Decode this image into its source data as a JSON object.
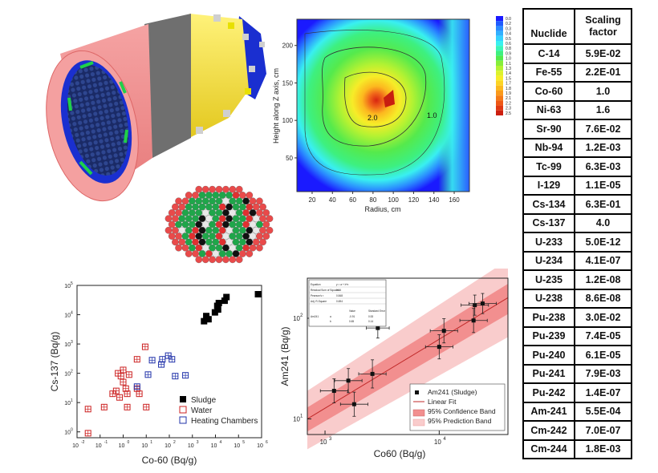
{
  "colors": {
    "cyl_pink": "#f08a8a",
    "cyl_grey": "#6f6f6f",
    "cyl_yellow": "#f2e02c",
    "cyl_blue": "#1a2fd0",
    "fuel_green": "#1fa64a",
    "fuel_red": "#e03030",
    "sludge": "#000000",
    "water": "#cc2222",
    "heating": "#2233aa",
    "confidence_band": "#f28f8f",
    "prediction_band": "#f9cccc"
  },
  "contour_plot": {
    "ylabel": "Height along Z axis, cm",
    "xlabel": "Radius, cm",
    "x_ticks": [
      "20",
      "40",
      "60",
      "80",
      "100",
      "120",
      "140",
      "160"
    ],
    "y_ticks": [
      "50",
      "100",
      "150",
      "200"
    ],
    "contour_labels": [
      "2.0",
      "1.0"
    ],
    "colorbar_ticks": [
      "0.0",
      "0.2",
      "0.3",
      "0.4",
      "0.5",
      "0.6",
      "0.8",
      "0.9",
      "1.0",
      "1.1",
      "1.3",
      "1.4",
      "1.5",
      "1.7",
      "1.8",
      "1.9",
      "2.1",
      "2.2",
      "2.3",
      "2.5"
    ],
    "colorbar_colors": [
      "#1a1aff",
      "#1f5bff",
      "#2a8bff",
      "#30b0ff",
      "#35d2ff",
      "#39f0f0",
      "#3af5b8",
      "#3df080",
      "#55ea4c",
      "#86ee3a",
      "#b4f232",
      "#dcf22c",
      "#f7ec28",
      "#fcd424",
      "#fcb81f",
      "#fa9a1b",
      "#f57a17",
      "#ee5714",
      "#e03812",
      "#cc1f10"
    ]
  },
  "scaling_table": {
    "header_nuclide": "Nuclide",
    "header_factor_line1": "Scaling",
    "header_factor_line2": "factor",
    "rows": [
      {
        "nuclide": "C-14",
        "factor": "5.9E-02"
      },
      {
        "nuclide": "Fe-55",
        "factor": "2.2E-01"
      },
      {
        "nuclide": "Co-60",
        "factor": "1.0"
      },
      {
        "nuclide": "Ni-63",
        "factor": "1.6"
      },
      {
        "nuclide": "Sr-90",
        "factor": "7.6E-02"
      },
      {
        "nuclide": "Nb-94",
        "factor": "1.2E-03"
      },
      {
        "nuclide": "Tc-99",
        "factor": "6.3E-03"
      },
      {
        "nuclide": "I-129",
        "factor": "1.1E-05"
      },
      {
        "nuclide": "Cs-134",
        "factor": "6.3E-01"
      },
      {
        "nuclide": "Cs-137",
        "factor": "4.0"
      },
      {
        "nuclide": "U-233",
        "factor": "5.0E-12"
      },
      {
        "nuclide": "U-234",
        "factor": "4.1E-07"
      },
      {
        "nuclide": "U-235",
        "factor": "1.2E-08"
      },
      {
        "nuclide": "U-238",
        "factor": "8.6E-08"
      },
      {
        "nuclide": "Pu-238",
        "factor": "3.0E-02"
      },
      {
        "nuclide": "Pu-239",
        "factor": "7.4E-05"
      },
      {
        "nuclide": "Pu-240",
        "factor": "6.1E-05"
      },
      {
        "nuclide": "Pu-241",
        "factor": "7.9E-03"
      },
      {
        "nuclide": "Pu-242",
        "factor": "1.4E-07"
      },
      {
        "nuclide": "Am-241",
        "factor": "5.5E-04"
      },
      {
        "nuclide": "Cm-242",
        "factor": "7.0E-07"
      },
      {
        "nuclide": "Cm-244",
        "factor": "1.8E-03"
      }
    ]
  },
  "chart_data": [
    {
      "type": "scatter",
      "title": "",
      "xlabel": "Co-60 (Bq/g)",
      "ylabel": "Cs-137 (Bq/g)",
      "xscale": "log",
      "yscale": "log",
      "xlim_exp": [
        -2,
        6
      ],
      "ylim_exp": [
        -0.2,
        5
      ],
      "x_tick_labels": [
        "10",
        "10",
        "10",
        "10",
        "10",
        "10",
        "10",
        "10",
        "10"
      ],
      "x_tick_exps": [
        "-2",
        "-1",
        "0",
        "1",
        "2",
        "3",
        "4",
        "5",
        "6"
      ],
      "y_tick_labels": [
        "10",
        "10",
        "10",
        "10",
        "10",
        "10"
      ],
      "y_tick_exps": [
        "0",
        "1",
        "2",
        "3",
        "4",
        "5"
      ],
      "legend_position": "bottom-right",
      "series": [
        {
          "name": "Sludge",
          "marker": "filled-square",
          "points": [
            [
              3200,
              6000
            ],
            [
              4000,
              9000
            ],
            [
              5000,
              7000
            ],
            [
              9500,
              12000
            ],
            [
              12000,
              20000
            ],
            [
              13000,
              15000
            ],
            [
              14000,
              25000
            ],
            [
              25000,
              30000
            ],
            [
              30000,
              40000
            ],
            [
              700000,
              50000
            ]
          ]
        },
        {
          "name": "Water",
          "marker": "open-square-cross",
          "points": [
            [
              0.03,
              0.9
            ],
            [
              0.03,
              6
            ],
            [
              0.15,
              7
            ],
            [
              0.35,
              20
            ],
            [
              0.5,
              25
            ],
            [
              0.6,
              100
            ],
            [
              0.7,
              15
            ],
            [
              0.8,
              80
            ],
            [
              1.0,
              50
            ],
            [
              1.0,
              130
            ],
            [
              1.3,
              30
            ],
            [
              1.5,
              20
            ],
            [
              1.5,
              7
            ],
            [
              1.8,
              90
            ],
            [
              4,
              300
            ],
            [
              4,
              30
            ],
            [
              5,
              20
            ],
            [
              9,
              800
            ],
            [
              10,
              7
            ]
          ]
        },
        {
          "name": "Heating Chambers",
          "marker": "open-square-cross",
          "points": [
            [
              4,
              35
            ],
            [
              12,
              90
            ],
            [
              18,
              280
            ],
            [
              45,
              200
            ],
            [
              50,
              300
            ],
            [
              90,
              400
            ],
            [
              130,
              300
            ],
            [
              180,
              80
            ],
            [
              500,
              85
            ]
          ]
        }
      ]
    },
    {
      "type": "scatter",
      "title": "",
      "xlabel": "Co60 (Bq/g)",
      "ylabel": "Am241 (Bq/g)",
      "xscale": "log",
      "yscale": "log",
      "xlim": [
        700,
        40000
      ],
      "ylim": [
        7,
        250
      ],
      "x_tick_labels": [
        "10",
        "10"
      ],
      "x_tick_exps": [
        "3",
        "4"
      ],
      "y_tick_labels": [
        "10",
        "10"
      ],
      "y_tick_exps": [
        "1",
        "2"
      ],
      "legend_position": "bottom-right",
      "legend": [
        "Am241 (Sludge)",
        "Linear Fit",
        "95% Confidence Band",
        "95% Prediction Band"
      ],
      "fit": {
        "x": [
          700,
          40000
        ],
        "y": [
          10,
          160
        ]
      },
      "confidence_band": {
        "lower": [
          7.5,
          110
        ],
        "upper": [
          13,
          220
        ]
      },
      "prediction_band": {
        "lower": [
          5,
          65
        ],
        "upper": [
          19,
          380
        ]
      },
      "points": [
        {
          "x": 1200,
          "y": 19,
          "xerr": 0.12,
          "yerr": 0.12
        },
        {
          "x": 1600,
          "y": 24,
          "xerr": 0.12,
          "yerr": 0.12
        },
        {
          "x": 1800,
          "y": 14,
          "xerr": 0.12,
          "yerr": 0.12
        },
        {
          "x": 2600,
          "y": 28,
          "xerr": 0.12,
          "yerr": 0.14
        },
        {
          "x": 2900,
          "y": 80,
          "xerr": 0.1,
          "yerr": 0.1
        },
        {
          "x": 10000,
          "y": 52,
          "xerr": 0.12,
          "yerr": 0.12
        },
        {
          "x": 11000,
          "y": 75,
          "xerr": 0.12,
          "yerr": 0.12
        },
        {
          "x": 20000,
          "y": 95,
          "xerr": 0.12,
          "yerr": 0.12
        },
        {
          "x": 20500,
          "y": 135,
          "xerr": 0.12,
          "yerr": 0.1
        },
        {
          "x": 24000,
          "y": 140,
          "xerr": 0.12,
          "yerr": 0.1
        }
      ],
      "stats_box": {
        "rows": [
          [
            "Equation",
            "y = a + b*x"
          ],
          [
            "Residual Sum of Squares",
            "0.24"
          ],
          [
            "Pearson's r",
            "0.848"
          ],
          [
            "Adj. R-Square",
            "0.694"
          ]
        ],
        "param_header": [
          "",
          "",
          "Value",
          "Standard Error"
        ],
        "param_rows": [
          [
            "Am241",
            "a",
            "-0.91",
            "0.53"
          ],
          [
            "",
            "b",
            "0.65",
            "0.14"
          ]
        ]
      }
    }
  ]
}
